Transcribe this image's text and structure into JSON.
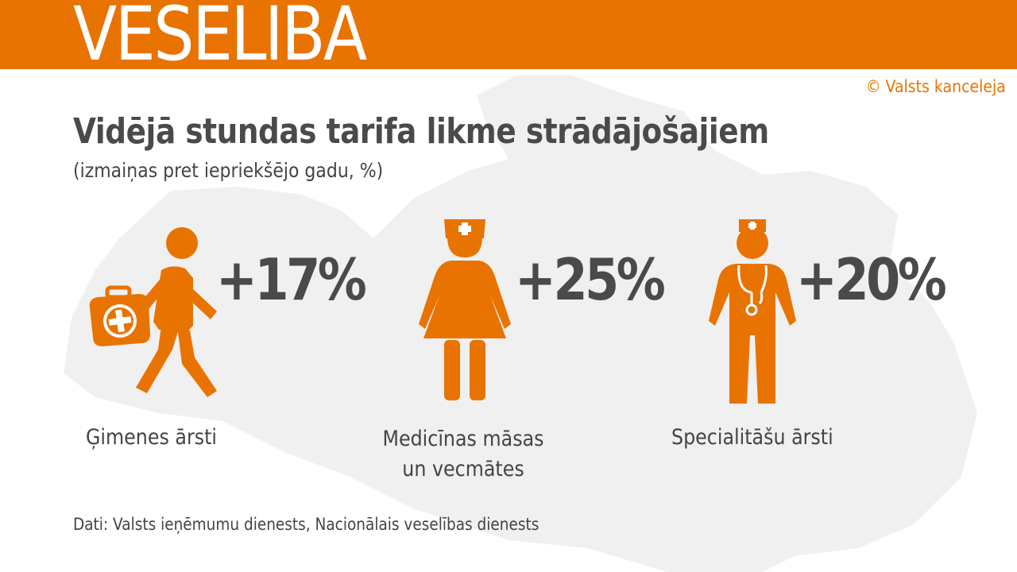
{
  "header": {
    "title": "VESELĪBA"
  },
  "copyright": "© Valsts kanceleja",
  "main": {
    "title": "Vidējā stundas tarifa likme strādājošajiem",
    "subtitle": "(izmaiņas pret iepriekšējo gadu, %)"
  },
  "items": [
    {
      "value": "+17%",
      "label": "Ģimenes ārsti",
      "icon": "walking-doctor-icon"
    },
    {
      "value": "+25%",
      "label_line1": "Medicīnas māsas",
      "label_line2": "un vecmātes",
      "icon": "nurse-icon"
    },
    {
      "value": "+20%",
      "label": "Specialitāšu ārsti",
      "icon": "doctor-stethoscope-icon"
    }
  ],
  "source": "Dati: Valsts ieņēmumu dienests, Nacionālais veselības dienests",
  "colors": {
    "accent": "#e87300",
    "text": "#444444",
    "map": "#f0f0f0"
  }
}
